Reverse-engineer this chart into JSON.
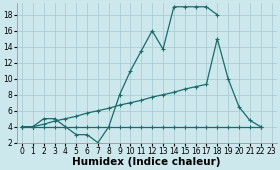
{
  "xlabel": "Humidex (Indice chaleur)",
  "bg_color": "#cce8ec",
  "grid_color": "#aacdd4",
  "line_color": "#1a6b6b",
  "xlim": [
    -0.5,
    23.5
  ],
  "ylim": [
    2,
    19.5
  ],
  "yticks": [
    2,
    4,
    6,
    8,
    10,
    12,
    14,
    16,
    18
  ],
  "xticks": [
    0,
    1,
    2,
    3,
    4,
    5,
    6,
    7,
    8,
    9,
    10,
    11,
    12,
    13,
    14,
    15,
    16,
    17,
    18,
    19,
    20,
    21,
    22,
    23
  ],
  "line1_x": [
    0,
    1,
    2,
    3,
    4,
    5,
    6,
    7,
    8,
    9,
    10,
    11,
    12,
    13,
    14,
    15,
    16,
    17,
    18
  ],
  "line1_y": [
    4,
    4,
    5,
    5,
    4,
    3,
    3,
    2,
    4,
    8,
    11,
    13.5,
    16,
    13.7,
    19,
    19,
    19,
    19,
    18
  ],
  "line2_x": [
    0,
    1,
    2,
    3,
    4,
    5,
    6,
    7,
    8,
    9,
    10,
    11,
    12,
    13,
    14,
    15,
    16,
    17,
    18,
    19,
    20,
    21,
    22
  ],
  "line2_y": [
    4,
    4,
    4.3,
    4.7,
    5.0,
    5.3,
    5.7,
    6.0,
    6.3,
    6.7,
    7.0,
    7.3,
    7.7,
    8.0,
    8.3,
    8.7,
    9.0,
    9.3,
    15,
    10,
    6.5,
    4.8,
    4
  ],
  "line3_x": [
    0,
    1,
    2,
    3,
    4,
    5,
    6,
    7,
    8,
    9,
    10,
    11,
    12,
    13,
    14,
    15,
    16,
    17,
    18,
    19,
    20,
    21,
    22
  ],
  "line3_y": [
    4,
    4,
    4,
    4,
    4,
    4,
    4,
    4,
    4,
    4,
    4,
    4,
    4,
    4,
    4,
    4,
    4,
    4,
    4,
    4,
    4,
    4,
    4
  ],
  "markersize": 3.5,
  "linewidth": 0.9,
  "tick_fontsize": 5.5,
  "xlabel_fontsize": 7.5
}
